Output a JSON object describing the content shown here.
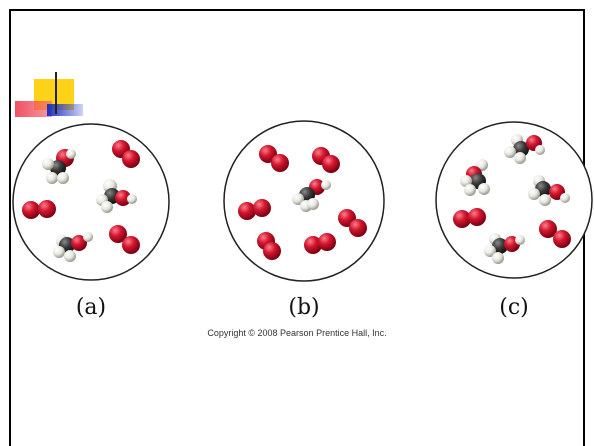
{
  "panels": [
    {
      "label": "(a)"
    },
    {
      "label": "(b)"
    },
    {
      "label": "(c)"
    }
  ],
  "copyright": "Copyright © 2008 Pearson Prentice Hall, Inc.",
  "colors": {
    "oxygen": "#c8102e",
    "oxygen_highlight": "#ff6a7a",
    "carbon": "#3a3a3a",
    "hydrogen": "#eeeeea",
    "circle_stroke": "#222222",
    "accent_yellow": "#ffd21a",
    "accent_red": "#f0465a",
    "accent_blue": "#1b2fbf"
  }
}
